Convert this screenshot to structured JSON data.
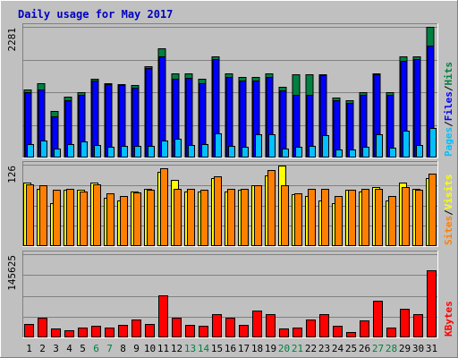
{
  "title": "Daily usage for May 2017",
  "colors": {
    "page_bg": "#C0C0C0",
    "title": "#0000C0",
    "hits": "#008040",
    "files": "#0000FF",
    "pages": "#00C0FF",
    "visits": "#FFFF00",
    "sites": "#FF8000",
    "kbytes": "#FF0000",
    "grid": "#808080"
  },
  "chart_data": [
    {
      "type": "bar",
      "panel": "hits-files-pages",
      "categories": [
        "1",
        "2",
        "3",
        "4",
        "5",
        "6",
        "7",
        "8",
        "9",
        "10",
        "11",
        "12",
        "13",
        "14",
        "15",
        "16",
        "17",
        "18",
        "19",
        "20",
        "21",
        "22",
        "23",
        "24",
        "25",
        "26",
        "27",
        "28",
        "29",
        "30",
        "31"
      ],
      "weekend_days": [
        "6",
        "7",
        "13",
        "14",
        "20",
        "21",
        "27",
        "28"
      ],
      "ymax_label": "2281",
      "ylim": [
        0,
        2281
      ],
      "legend": [
        {
          "label": "Pages",
          "color": "#00C0FF"
        },
        {
          "label": "Files",
          "color": "#0000FF"
        },
        {
          "label": "Hits",
          "color": "#008040"
        }
      ],
      "series": [
        {
          "name": "Hits",
          "values": [
            1185,
            1300,
            820,
            1055,
            1140,
            1368,
            1300,
            1288,
            1260,
            1591,
            1900,
            1476,
            1476,
            1368,
            1771,
            1476,
            1404,
            1404,
            1476,
            1235,
            1448,
            1448,
            1448,
            1050,
            1000,
            1140,
            1476,
            1140,
            1771,
            1771,
            2281
          ]
        },
        {
          "name": "Files",
          "values": [
            1140,
            1185,
            720,
            1005,
            1095,
            1340,
            1280,
            1260,
            1223,
            1565,
            1771,
            1368,
            1395,
            1296,
            1725,
            1404,
            1345,
            1350,
            1404,
            1170,
            1095,
            1095,
            1435,
            1000,
            950,
            1095,
            1448,
            1095,
            1680,
            1715,
            1950
          ]
        },
        {
          "name": "Pages",
          "values": [
            240,
            290,
            150,
            240,
            285,
            215,
            190,
            210,
            200,
            205,
            300,
            330,
            220,
            240,
            425,
            210,
            195,
            404,
            404,
            150,
            190,
            205,
            395,
            140,
            140,
            190,
            404,
            170,
            475,
            215,
            520
          ]
        }
      ]
    },
    {
      "type": "bar",
      "panel": "visits-sites",
      "categories": [
        "1",
        "2",
        "3",
        "4",
        "5",
        "6",
        "7",
        "8",
        "9",
        "10",
        "11",
        "12",
        "13",
        "14",
        "15",
        "16",
        "17",
        "18",
        "19",
        "20",
        "21",
        "22",
        "23",
        "24",
        "25",
        "26",
        "27",
        "28",
        "29",
        "30",
        "31"
      ],
      "ymax_label": "126",
      "ylim": [
        0,
        126
      ],
      "legend": [
        {
          "label": "Sites",
          "color": "#FF8000"
        },
        {
          "label": "Visits",
          "color": "#FFFF00"
        }
      ],
      "series": [
        {
          "name": "Visits",
          "values": [
            98,
            89,
            67,
            87,
            87,
            98,
            75,
            71,
            85,
            89,
            115,
            103,
            85,
            85,
            105,
            85,
            87,
            94,
            110,
            124,
            80,
            78,
            71,
            67,
            87,
            85,
            91,
            71,
            98,
            89,
            105
          ]
        },
        {
          "name": "Sites",
          "values": [
            96,
            94,
            87,
            89,
            85,
            96,
            82,
            78,
            83,
            87,
            120,
            89,
            89,
            87,
            108,
            89,
            89,
            94,
            117,
            94,
            82,
            89,
            89,
            78,
            87,
            89,
            89,
            78,
            91,
            87,
            112
          ]
        }
      ]
    },
    {
      "type": "bar",
      "panel": "kbytes",
      "categories": [
        "1",
        "2",
        "3",
        "4",
        "5",
        "6",
        "7",
        "8",
        "9",
        "10",
        "11",
        "12",
        "13",
        "14",
        "15",
        "16",
        "17",
        "18",
        "19",
        "20",
        "21",
        "22",
        "23",
        "24",
        "25",
        "26",
        "27",
        "28",
        "29",
        "30",
        "31"
      ],
      "ymax_label": "145625",
      "ylim": [
        0,
        145625
      ],
      "legend": [
        {
          "label": "KBytes",
          "color": "#FF0000"
        }
      ],
      "series": [
        {
          "name": "KBytes",
          "values": [
            24000,
            35000,
            15000,
            12000,
            17000,
            21000,
            18000,
            22000,
            31000,
            24000,
            73000,
            35000,
            22000,
            21000,
            40000,
            35000,
            22000,
            47000,
            40000,
            16000,
            18000,
            31000,
            40000,
            20000,
            9000,
            30000,
            64000,
            17000,
            50000,
            40000,
            118000
          ]
        }
      ]
    }
  ]
}
